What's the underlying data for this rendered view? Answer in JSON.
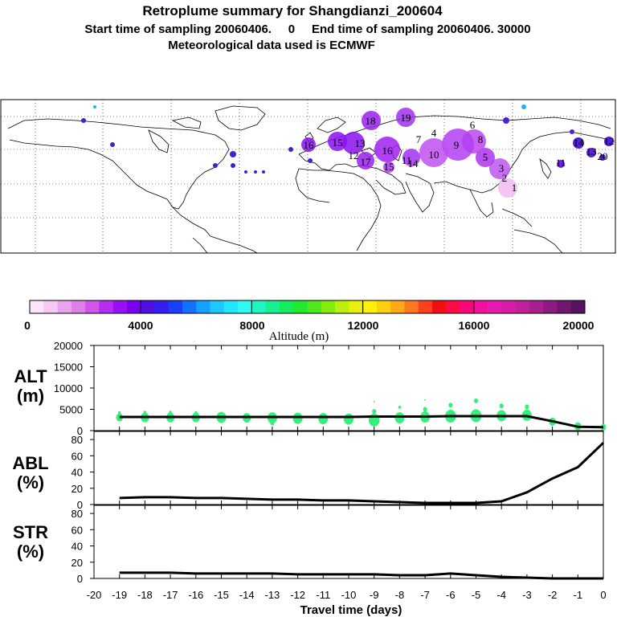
{
  "title": {
    "line1": "Retroplume summary for Shangdianzi_200604",
    "line2": "Start time of sampling 20060406.     0     End time of sampling 20060406. 30000",
    "line3": "Meteorological data used is ECMWF"
  },
  "map": {
    "plume_labels": [
      "18",
      "19",
      "16",
      "15",
      "13",
      "12",
      "17",
      "16",
      "11",
      "10",
      "9",
      "8",
      "7",
      "6",
      "5",
      "4",
      "3",
      "2",
      "1",
      "14",
      "15",
      "16",
      "14",
      "10",
      "13",
      "12",
      "11",
      "20"
    ]
  },
  "colorbar": {
    "title": "Altitude (m)",
    "ticks": [
      "0",
      "4000",
      "8000",
      "12000",
      "16000",
      "20000"
    ],
    "colors": [
      "#fde6f9",
      "#f6c9f3",
      "#eaa4ee",
      "#df7fe8",
      "#cf55ec",
      "#b52ef2",
      "#9a10f5",
      "#7a00f0",
      "#4d10e0",
      "#3320f0",
      "#1c40fa",
      "#1470ff",
      "#16a0ff",
      "#1dc8ff",
      "#25e6ff",
      "#2cfaf0",
      "#20f5c0",
      "#18f090",
      "#15ec60",
      "#22e830",
      "#4ee81c",
      "#86ec10",
      "#bcf00c",
      "#e6f00a",
      "#fff00a",
      "#ffd010",
      "#ffa818",
      "#ff7820",
      "#ff4020",
      "#f01010",
      "#fe0a4a",
      "#f8087a",
      "#f210a0",
      "#e81ab4",
      "#d81ca8",
      "#c0209a",
      "#a8208e",
      "#8c1c80",
      "#6e1870",
      "#561460"
    ]
  },
  "chart_data": [
    {
      "type": "line",
      "name": "ALT",
      "panel_label": [
        "ALT",
        "(m)"
      ],
      "x": [
        -19,
        -18,
        -17,
        -16,
        -15,
        -14,
        -13,
        -12,
        -11,
        -10,
        -9,
        -8,
        -7,
        -6,
        -5,
        -4,
        -3,
        -2,
        -1,
        0
      ],
      "values": [
        3200,
        3200,
        3200,
        3200,
        3200,
        3200,
        3200,
        3200,
        3200,
        3200,
        3300,
        3300,
        3300,
        3400,
        3400,
        3400,
        3400,
        2200,
        900,
        800
      ],
      "ylim": [
        0,
        20000
      ],
      "yticks": [
        "0",
        "5000",
        "10000",
        "15000",
        "20000"
      ],
      "spread_points": [
        {
          "x": -19,
          "y": 3100,
          "size": 5
        },
        {
          "x": -19,
          "y": 4200,
          "size": 2
        },
        {
          "x": -18,
          "y": 3100,
          "size": 6
        },
        {
          "x": -18,
          "y": 4300,
          "size": 2
        },
        {
          "x": -17,
          "y": 3100,
          "size": 6
        },
        {
          "x": -17,
          "y": 4300,
          "size": 2
        },
        {
          "x": -16,
          "y": 3100,
          "size": 6
        },
        {
          "x": -16,
          "y": 4200,
          "size": 2
        },
        {
          "x": -15,
          "y": 3100,
          "size": 7
        },
        {
          "x": -14,
          "y": 3000,
          "size": 6
        },
        {
          "x": -13,
          "y": 3000,
          "size": 7
        },
        {
          "x": -13,
          "y": 1800,
          "size": 3
        },
        {
          "x": -12,
          "y": 2900,
          "size": 7
        },
        {
          "x": -11,
          "y": 2800,
          "size": 7
        },
        {
          "x": -10,
          "y": 2700,
          "size": 7
        },
        {
          "x": -9,
          "y": 2500,
          "size": 8
        },
        {
          "x": -9,
          "y": 4500,
          "size": 3
        },
        {
          "x": -9,
          "y": 6800,
          "size": 1
        },
        {
          "x": -8,
          "y": 3000,
          "size": 7
        },
        {
          "x": -8,
          "y": 5500,
          "size": 2
        },
        {
          "x": -7,
          "y": 3200,
          "size": 7
        },
        {
          "x": -7,
          "y": 5000,
          "size": 3
        },
        {
          "x": -7,
          "y": 7200,
          "size": 1
        },
        {
          "x": -6,
          "y": 3400,
          "size": 8
        },
        {
          "x": -6,
          "y": 6000,
          "size": 3
        },
        {
          "x": -5,
          "y": 3500,
          "size": 8
        },
        {
          "x": -5,
          "y": 7000,
          "size": 3
        },
        {
          "x": -4,
          "y": 3500,
          "size": 7
        },
        {
          "x": -4,
          "y": 5800,
          "size": 3
        },
        {
          "x": -3,
          "y": 3600,
          "size": 7
        },
        {
          "x": -3,
          "y": 5600,
          "size": 3
        },
        {
          "x": -2,
          "y": 2100,
          "size": 5
        },
        {
          "x": -1,
          "y": 1000,
          "size": 5
        },
        {
          "x": 0,
          "y": 800,
          "size": 4
        }
      ]
    },
    {
      "type": "line",
      "name": "ABL",
      "panel_label": [
        "ABL",
        "(%)"
      ],
      "x": [
        -19,
        -18,
        -17,
        -16,
        -15,
        -14,
        -13,
        -12,
        -11,
        -10,
        -9,
        -8,
        -7,
        -6,
        -5,
        -4,
        -3,
        -2,
        -1,
        0
      ],
      "values": [
        8,
        9,
        9,
        8,
        8,
        7,
        6,
        6,
        5,
        5,
        4,
        3,
        2,
        2,
        2,
        4,
        15,
        32,
        46,
        76
      ],
      "ylim": [
        0,
        90
      ],
      "yticks": [
        "0",
        "20",
        "40",
        "60",
        "80"
      ]
    },
    {
      "type": "line",
      "name": "STR",
      "panel_label": [
        "STR",
        "(%)"
      ],
      "x": [
        -19,
        -18,
        -17,
        -16,
        -15,
        -14,
        -13,
        -12,
        -11,
        -10,
        -9,
        -8,
        -7,
        -6,
        -5,
        -4,
        -3,
        -2,
        -1,
        0
      ],
      "values": [
        7,
        7,
        7,
        6,
        6,
        6,
        6,
        5,
        5,
        5,
        5,
        4,
        4,
        6,
        4,
        2,
        1,
        0,
        0,
        0
      ],
      "ylim": [
        0,
        90
      ],
      "yticks": [
        "0",
        "20",
        "40",
        "60",
        "80"
      ]
    }
  ],
  "xaxis": {
    "title": "Travel time (days)",
    "ticks": [
      "-20",
      "-19",
      "-18",
      "-17",
      "-16",
      "-15",
      "-14",
      "-13",
      "-12",
      "-11",
      "-10",
      "-9",
      "-8",
      "-7",
      "-6",
      "-5",
      "-4",
      "-3",
      "-2",
      "-1",
      "0"
    ],
    "tick_values": [
      -20,
      -19,
      -18,
      -17,
      -16,
      -15,
      -14,
      -13,
      -12,
      -11,
      -10,
      -9,
      -8,
      -7,
      -6,
      -5,
      -4,
      -3,
      -2,
      -1,
      0
    ],
    "xlim": [
      -20,
      0
    ]
  },
  "colors": {
    "spread_green": "#33f07a",
    "line_black": "#000000",
    "plume_purple": "#a020f0",
    "plume_dark": "#6010e0"
  }
}
